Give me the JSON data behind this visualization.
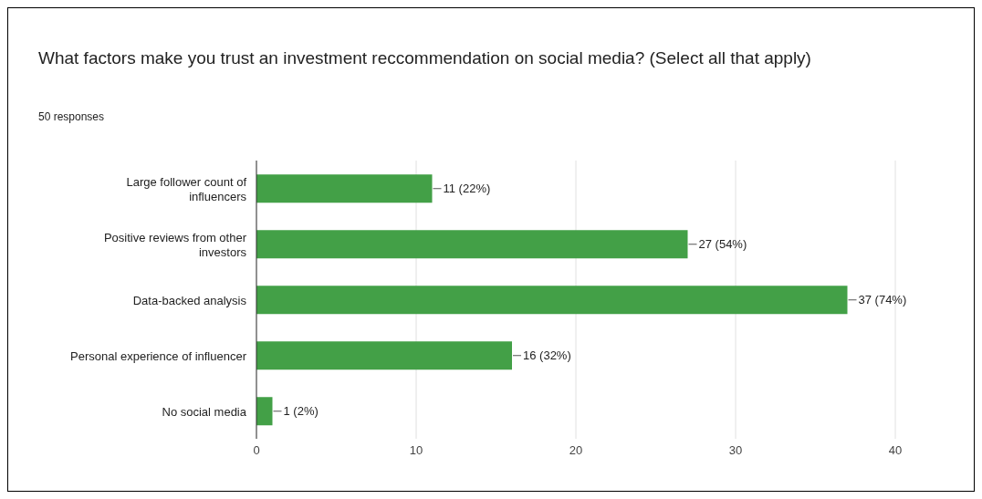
{
  "chart_data": {
    "type": "bar",
    "orientation": "horizontal",
    "title": "What factors make you trust an investment reccommendation on social media? (Select all that apply)",
    "subtitle": "50 responses",
    "categories": [
      "Large follower count of influencers",
      "Positive reviews from other investors",
      "Data-backed analysis",
      "Personal experience of influencer",
      "No social media"
    ],
    "values": [
      11,
      27,
      37,
      16,
      1
    ],
    "value_labels": [
      "11 (22%)",
      "27 (54%)",
      "37 (74%)",
      "16 (32%)",
      "1 (2%)"
    ],
    "color": "#43a047",
    "xlim": [
      0,
      40
    ],
    "xticks": [
      0,
      10,
      20,
      30,
      40
    ],
    "grid": "x"
  }
}
